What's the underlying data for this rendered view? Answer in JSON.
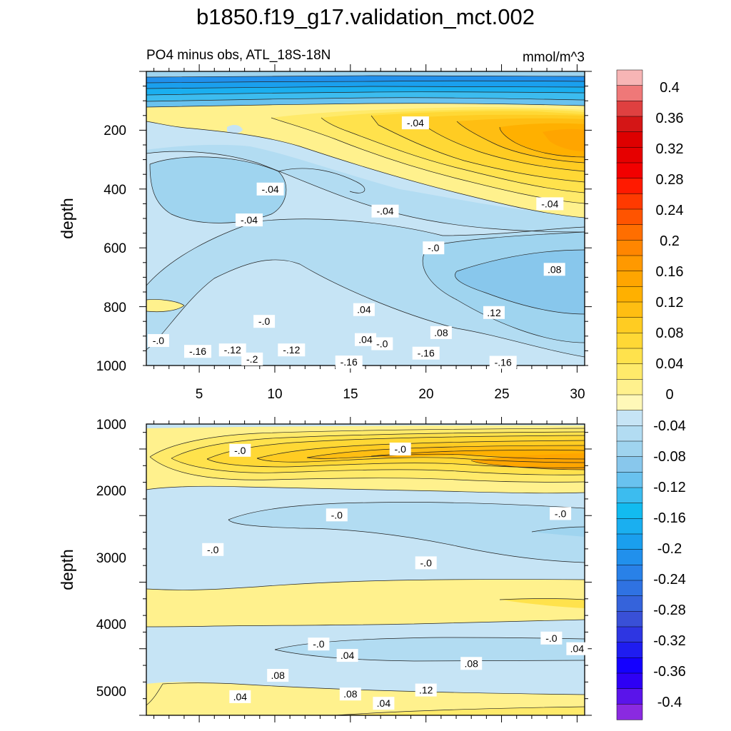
{
  "chart_data": {
    "title": "b1850.f19_g17.validation_mct.002",
    "colorbar": {
      "tick_labels": [
        "0.4",
        "0.36",
        "0.32",
        "0.28",
        "0.24",
        "0.2",
        "0.16",
        "0.12",
        "0.08",
        "0.04",
        "0",
        "-0.04",
        "-0.08",
        "-0.12",
        "-0.16",
        "-0.2",
        "-0.24",
        "-0.28",
        "-0.32",
        "-0.36",
        "-0.4"
      ],
      "colors_top_to_bottom": [
        "#f7b5b5",
        "#ef7878",
        "#df4040",
        "#d41616",
        "#de0000",
        "#e60000",
        "#f20000",
        "#ff1a00",
        "#ff3a00",
        "#ff5400",
        "#ff6e00",
        "#ff8600",
        "#ff9900",
        "#ffa500",
        "#ffb000",
        "#ffbe12",
        "#ffcc22",
        "#ffd835",
        "#ffe24c",
        "#ffea6a",
        "#fff18d",
        "#fff8b8",
        "#c6e4f5",
        "#b2dcf2",
        "#9fd4ef",
        "#88c7ec",
        "#69c2ef",
        "#3cbcef",
        "#12bbf0",
        "#1aaff0",
        "#1a9fee",
        "#2190ec",
        "#2981e8",
        "#2f72e2",
        "#3563db",
        "#3950d7",
        "#2e36e2",
        "#1f1df0",
        "#1400ff",
        "#2e00f5",
        "#5a14ea",
        "#8a2ae0"
      ]
    },
    "panels": [
      {
        "type": "contour",
        "title": "PO4 minus obs, ATL_18S-18N",
        "units": "mmol/m^3",
        "xlabel": "",
        "ylabel": "depth",
        "x_ticks": [
          "5",
          "10",
          "15",
          "20",
          "25",
          "30"
        ],
        "y_ticks": [
          "200",
          "400",
          "600",
          "800",
          "1000"
        ],
        "xlim": [
          1.5,
          30.5
        ],
        "ylim": [
          1000,
          0
        ],
        "contour_labels": [
          {
            "text": "-.2",
            "x": 8.5,
            "y": 22
          },
          {
            "text": "-.16",
            "x": 4.9,
            "y": 48
          },
          {
            "text": "-.12",
            "x": 7.2,
            "y": 53
          },
          {
            "text": "-.12",
            "x": 11.1,
            "y": 53
          },
          {
            "text": "-.16",
            "x": 14.9,
            "y": 12
          },
          {
            "text": "-.16",
            "x": 20.0,
            "y": 42
          },
          {
            "text": "-.16",
            "x": 25.1,
            "y": 11
          },
          {
            "text": "-.0",
            "x": 2.3,
            "y": 85
          },
          {
            "text": "-.0",
            "x": 17.1,
            "y": 74
          },
          {
            "text": ".04",
            "x": 16.0,
            "y": 88
          },
          {
            "text": ".08",
            "x": 21.0,
            "y": 112
          },
          {
            "text": "-.0",
            "x": 9.3,
            "y": 150
          },
          {
            "text": ".04",
            "x": 15.9,
            "y": 190
          },
          {
            "text": ".12",
            "x": 24.5,
            "y": 180
          },
          {
            "text": ".08",
            "x": 28.5,
            "y": 327
          },
          {
            "text": "-.0",
            "x": 20.5,
            "y": 400
          },
          {
            "text": "-.04",
            "x": 8.3,
            "y": 495
          },
          {
            "text": "-.04",
            "x": 17.3,
            "y": 525
          },
          {
            "text": "-.04",
            "x": 28.2,
            "y": 550
          },
          {
            "text": "-.04",
            "x": 9.7,
            "y": 600
          },
          {
            "text": "-.04",
            "x": 19.3,
            "y": 825
          }
        ]
      },
      {
        "type": "contour",
        "title": "",
        "units": "",
        "xlabel": "",
        "ylabel": "depth",
        "x_ticks": [],
        "y_ticks": [
          "1000",
          "2000",
          "3000",
          "4000",
          "5000"
        ],
        "xlim": [
          1.5,
          30.5
        ],
        "ylim": [
          5375,
          1000
        ],
        "contour_labels": [
          {
            "text": ".04",
            "x": 7.7,
            "y": 1280
          },
          {
            "text": ".04",
            "x": 17.2,
            "y": 1180
          },
          {
            "text": ".08",
            "x": 15.0,
            "y": 1320
          },
          {
            "text": ".12",
            "x": 20.0,
            "y": 1380
          },
          {
            "text": ".08",
            "x": 10.2,
            "y": 1600
          },
          {
            "text": ".08",
            "x": 23.0,
            "y": 1780
          },
          {
            "text": ".04",
            "x": 14.8,
            "y": 1900
          },
          {
            "text": ".04",
            "x": 30.0,
            "y": 2000
          },
          {
            "text": "-.0",
            "x": 12.9,
            "y": 2070
          },
          {
            "text": "-.0",
            "x": 28.3,
            "y": 2160
          },
          {
            "text": "-.0",
            "x": 20.0,
            "y": 3290
          },
          {
            "text": "-.0",
            "x": 5.9,
            "y": 3490
          },
          {
            "text": "-.0",
            "x": 14.1,
            "y": 4010
          },
          {
            "text": "-.0",
            "x": 28.9,
            "y": 4030
          },
          {
            "text": "-.0",
            "x": 7.7,
            "y": 4980
          },
          {
            "text": "-.0",
            "x": 18.3,
            "y": 5000
          }
        ]
      }
    ]
  }
}
